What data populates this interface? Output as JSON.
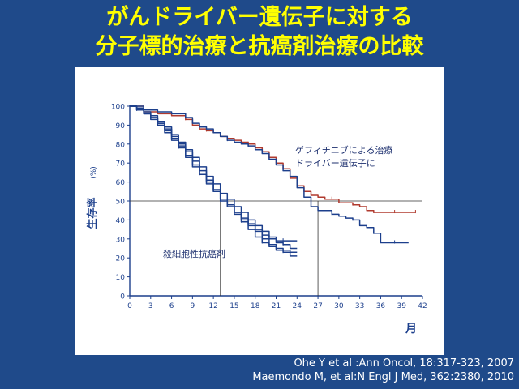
{
  "slide": {
    "title_line1": "がんドライバー遺伝子に対する",
    "title_line2": "分子標的治療と抗癌剤治療の比較",
    "citation_1": "Ohe Y et al :Ann Oncol, 18:317-323, 2007",
    "citation_2": "Maemondo M, et al:N Engl J Med, 362:2380, 2010"
  },
  "colors": {
    "background": "#1f4a8a",
    "title": "#ffff00",
    "chemo_curve": "#1c3f8c",
    "gefitinib_curve": "#b03a2e"
  },
  "chart_data": {
    "type": "line",
    "ylabel": "生存率",
    "ylabel_unit": "(%)",
    "xlabel": "月",
    "xticks": [
      0,
      3,
      6,
      9,
      12,
      15,
      18,
      21,
      24,
      27,
      30,
      33,
      36,
      39,
      42
    ],
    "yticks": [
      0,
      10,
      20,
      30,
      40,
      50,
      60,
      70,
      80,
      90,
      100
    ],
    "xlim": [
      0,
      42
    ],
    "ylim": [
      0,
      100
    ],
    "reference_line_y": 50,
    "median_markers_x": [
      13,
      27
    ],
    "annotations": {
      "gefitinib_line1": "ゲフィチニブによる治療",
      "gefitinib_line2": "ドライバー遺伝子に",
      "chemo": "殺細胞性抗癌剤"
    },
    "series": [
      {
        "group": "gefitinib",
        "points": [
          [
            0,
            100
          ],
          [
            2,
            97
          ],
          [
            4,
            96
          ],
          [
            6,
            95
          ],
          [
            8,
            93
          ],
          [
            9,
            90
          ],
          [
            10,
            88
          ],
          [
            11,
            87
          ],
          [
            12,
            86
          ],
          [
            13,
            84
          ],
          [
            14,
            83
          ],
          [
            15,
            82
          ],
          [
            16,
            81
          ],
          [
            17,
            80
          ],
          [
            18,
            78
          ],
          [
            19,
            76
          ],
          [
            20,
            73
          ],
          [
            21,
            70
          ],
          [
            22,
            67
          ],
          [
            23,
            62
          ],
          [
            24,
            58
          ],
          [
            25,
            55
          ],
          [
            26,
            53
          ],
          [
            27,
            52
          ],
          [
            28,
            51
          ],
          [
            29,
            51
          ],
          [
            30,
            49
          ],
          [
            31,
            49
          ],
          [
            32,
            48
          ],
          [
            33,
            47
          ],
          [
            34,
            45
          ],
          [
            35,
            44
          ],
          [
            36,
            44
          ],
          [
            37,
            44
          ],
          [
            38,
            44
          ],
          [
            39,
            44
          ],
          [
            40,
            44
          ],
          [
            41,
            44
          ]
        ]
      },
      {
        "group": "gefitinib",
        "points": [
          [
            0,
            100
          ],
          [
            2,
            98
          ],
          [
            4,
            97
          ],
          [
            6,
            96
          ],
          [
            8,
            94
          ],
          [
            9,
            91
          ],
          [
            10,
            89
          ],
          [
            11,
            88
          ],
          [
            12,
            86
          ],
          [
            13,
            84
          ],
          [
            14,
            82
          ],
          [
            15,
            81
          ],
          [
            16,
            80
          ],
          [
            17,
            79
          ],
          [
            18,
            77
          ],
          [
            19,
            75
          ],
          [
            20,
            72
          ],
          [
            21,
            69
          ],
          [
            22,
            66
          ],
          [
            23,
            63
          ],
          [
            24,
            57
          ],
          [
            25,
            52
          ],
          [
            26,
            47
          ],
          [
            27,
            45
          ],
          [
            28,
            45
          ],
          [
            29,
            43
          ],
          [
            30,
            42
          ],
          [
            31,
            41
          ],
          [
            32,
            40
          ],
          [
            33,
            37
          ],
          [
            34,
            36
          ],
          [
            35,
            33
          ],
          [
            36,
            28
          ],
          [
            37,
            28
          ],
          [
            38,
            28
          ],
          [
            39,
            28
          ],
          [
            40,
            28
          ]
        ]
      },
      {
        "group": "chemo",
        "points": [
          [
            0,
            100
          ],
          [
            1,
            98
          ],
          [
            2,
            96
          ],
          [
            3,
            94
          ],
          [
            4,
            91
          ],
          [
            5,
            88
          ],
          [
            6,
            84
          ],
          [
            7,
            80
          ],
          [
            8,
            76
          ],
          [
            9,
            71
          ],
          [
            10,
            66
          ],
          [
            11,
            61
          ],
          [
            12,
            56
          ],
          [
            13,
            51
          ],
          [
            14,
            48
          ],
          [
            15,
            44
          ],
          [
            16,
            40
          ],
          [
            17,
            37
          ],
          [
            18,
            34
          ],
          [
            19,
            30
          ],
          [
            20,
            27
          ],
          [
            21,
            25
          ],
          [
            22,
            24
          ],
          [
            23,
            23
          ],
          [
            24,
            23
          ]
        ]
      },
      {
        "group": "chemo",
        "points": [
          [
            0,
            100
          ],
          [
            1,
            98
          ],
          [
            2,
            96
          ],
          [
            3,
            93
          ],
          [
            4,
            90
          ],
          [
            5,
            86
          ],
          [
            6,
            82
          ],
          [
            7,
            78
          ],
          [
            8,
            73
          ],
          [
            9,
            68
          ],
          [
            10,
            64
          ],
          [
            11,
            59
          ],
          [
            12,
            55
          ],
          [
            13,
            50
          ],
          [
            14,
            47
          ],
          [
            15,
            43
          ],
          [
            16,
            39
          ],
          [
            17,
            35
          ],
          [
            18,
            31
          ],
          [
            19,
            28
          ],
          [
            20,
            26
          ],
          [
            21,
            24
          ],
          [
            22,
            23
          ],
          [
            23,
            21
          ],
          [
            24,
            21
          ]
        ]
      },
      {
        "group": "chemo",
        "points": [
          [
            0,
            100
          ],
          [
            1,
            99
          ],
          [
            2,
            97
          ],
          [
            3,
            95
          ],
          [
            4,
            92
          ],
          [
            5,
            89
          ],
          [
            6,
            85
          ],
          [
            7,
            81
          ],
          [
            8,
            77
          ],
          [
            9,
            73
          ],
          [
            10,
            68
          ],
          [
            11,
            63
          ],
          [
            12,
            59
          ],
          [
            13,
            54
          ],
          [
            14,
            51
          ],
          [
            15,
            47
          ],
          [
            16,
            44
          ],
          [
            17,
            40
          ],
          [
            18,
            37
          ],
          [
            19,
            34
          ],
          [
            20,
            31
          ],
          [
            21,
            29
          ],
          [
            22,
            29
          ],
          [
            23,
            29
          ],
          [
            24,
            29
          ]
        ]
      },
      {
        "group": "chemo",
        "points": [
          [
            0,
            100
          ],
          [
            1,
            98
          ],
          [
            2,
            96
          ],
          [
            3,
            94
          ],
          [
            4,
            91
          ],
          [
            5,
            87
          ],
          [
            6,
            83
          ],
          [
            7,
            79
          ],
          [
            8,
            74
          ],
          [
            9,
            69
          ],
          [
            10,
            64
          ],
          [
            11,
            60
          ],
          [
            12,
            55
          ],
          [
            13,
            51
          ],
          [
            14,
            48
          ],
          [
            15,
            44
          ],
          [
            16,
            41
          ],
          [
            17,
            38
          ],
          [
            18,
            35
          ],
          [
            19,
            32
          ],
          [
            20,
            30
          ],
          [
            21,
            28
          ],
          [
            22,
            27
          ],
          [
            23,
            25
          ],
          [
            24,
            25
          ]
        ]
      }
    ]
  }
}
